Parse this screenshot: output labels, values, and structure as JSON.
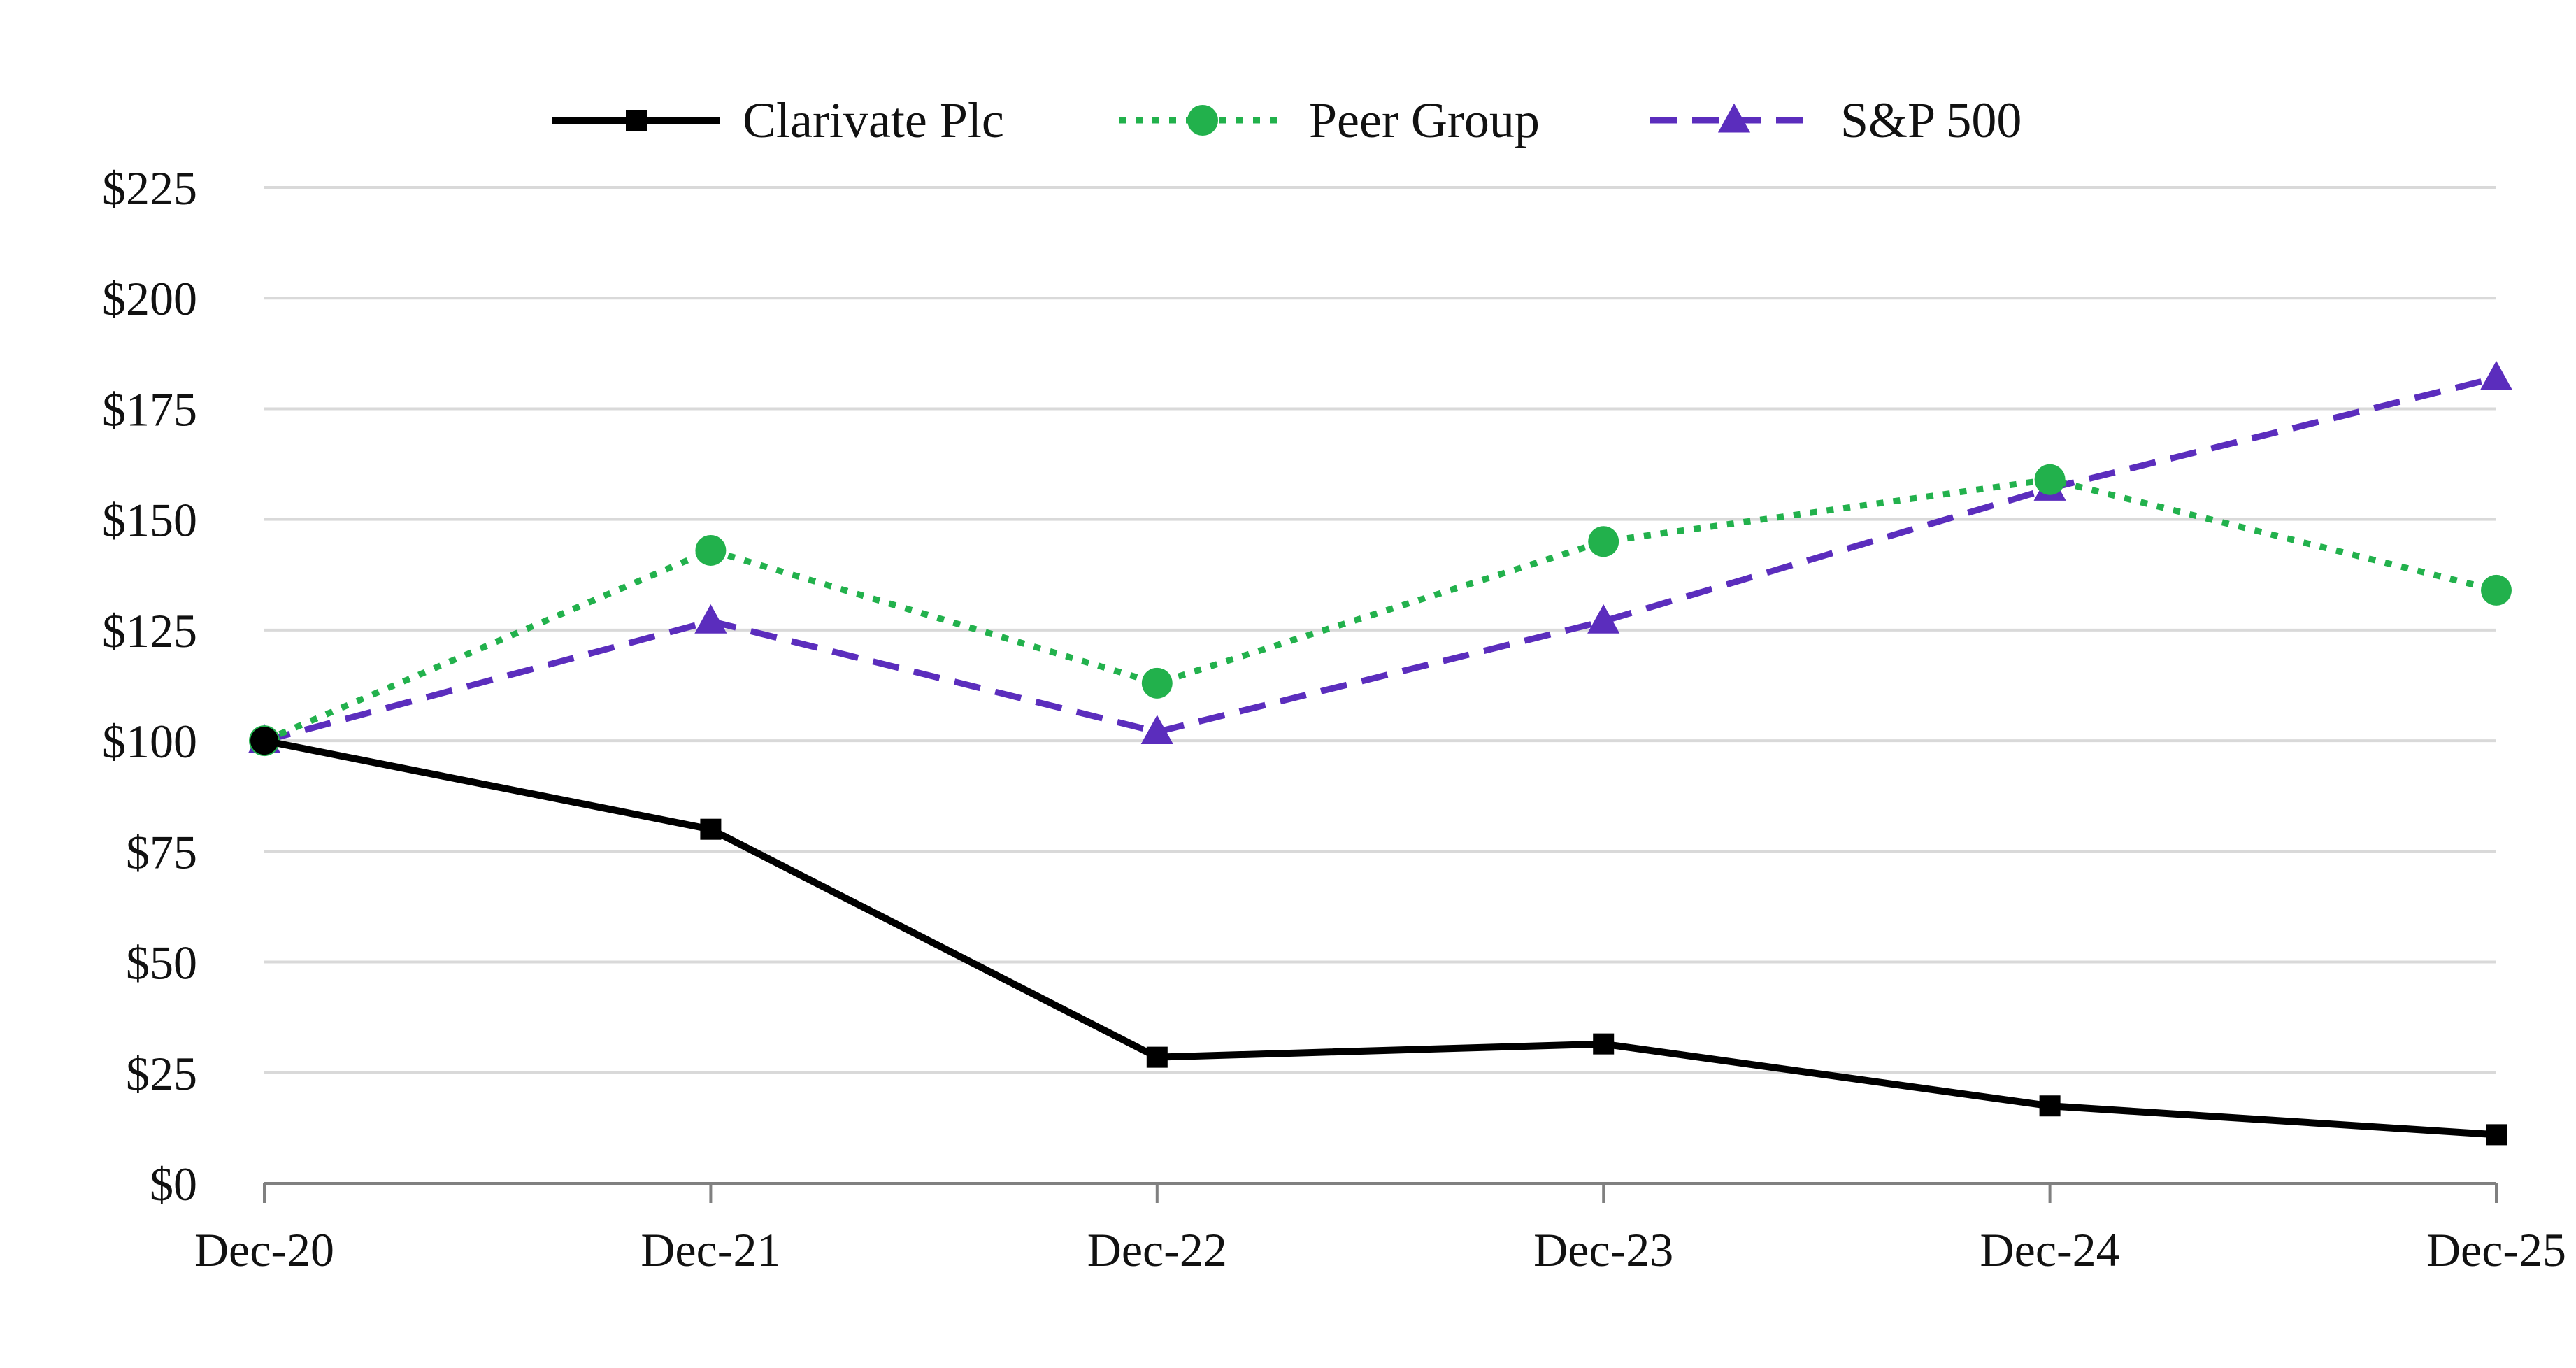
{
  "chart_data": {
    "type": "line",
    "categories": [
      "Dec-20",
      "Dec-21",
      "Dec-22",
      "Dec-23",
      "Dec-24",
      "Dec-25"
    ],
    "ylim": [
      0,
      225
    ],
    "yticks": [
      0,
      25,
      50,
      75,
      100,
      125,
      150,
      175,
      200,
      225
    ],
    "ytick_labels": [
      "$0",
      "$25",
      "$50",
      "$75",
      "$100",
      "$125",
      "$150",
      "$175",
      "$200",
      "$225"
    ],
    "grid": true,
    "legend_position": "top-center",
    "series": [
      {
        "name": "Clarivate Plc",
        "values": [
          100,
          80,
          28.5,
          31.5,
          17.5,
          11
        ],
        "color": "#000000",
        "dash": "solid",
        "marker": "square"
      },
      {
        "name": "Peer Group",
        "values": [
          100,
          143,
          113,
          145,
          159,
          134
        ],
        "color": "#22b14c",
        "dash": "dotted",
        "marker": "circle"
      },
      {
        "name": "S&P 500",
        "values": [
          100,
          127,
          102,
          127,
          157,
          182
        ],
        "color": "#5b2dbd",
        "dash": "dashed",
        "marker": "triangle"
      }
    ]
  }
}
